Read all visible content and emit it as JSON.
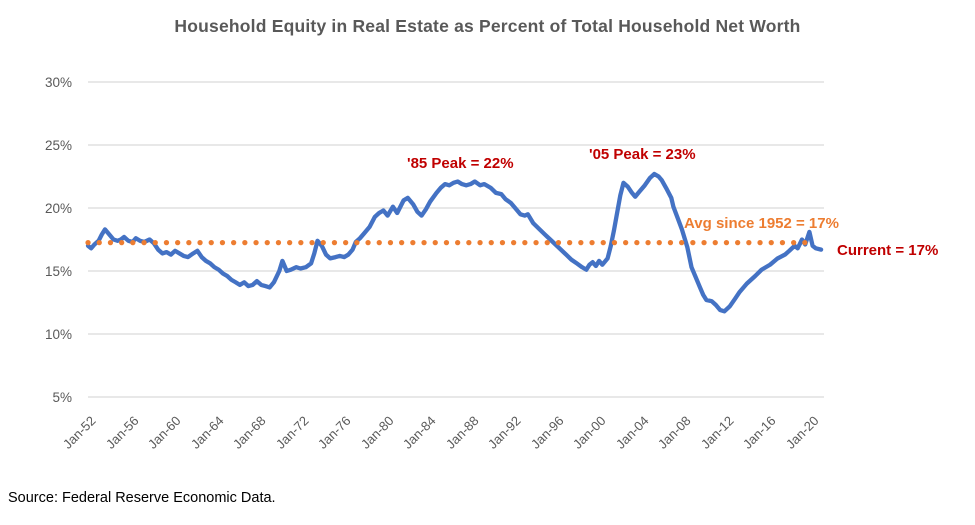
{
  "chart_data": {
    "type": "line",
    "title": "Household Equity in Real Estate as Percent of Total Household Net Worth",
    "xlabel": "",
    "ylabel": "",
    "ylim": [
      5,
      30
    ],
    "grid": "horizontal-only",
    "yticks": [
      30,
      25,
      20,
      15,
      10,
      5
    ],
    "ytick_labels": [
      "30%",
      "25%",
      "20%",
      "15%",
      "10%",
      "5%"
    ],
    "xtick_years": [
      1952,
      1956,
      1960,
      1964,
      1968,
      1972,
      1976,
      1980,
      1984,
      1988,
      1992,
      1996,
      2000,
      2004,
      2008,
      2012,
      2016,
      2020
    ],
    "xtick_labels": [
      "Jan-52",
      "Jan-56",
      "Jan-60",
      "Jan-64",
      "Jan-68",
      "Jan-72",
      "Jan-76",
      "Jan-80",
      "Jan-84",
      "Jan-88",
      "Jan-92",
      "Jan-96",
      "Jan-00",
      "Jan-04",
      "Jan-08",
      "Jan-12",
      "Jan-16",
      "Jan-20"
    ],
    "series": [
      {
        "name": "Household equity in real estate as percent of total household net worth",
        "color": "#4472C4",
        "points": [
          [
            1952.0,
            17.0
          ],
          [
            1952.3,
            16.8
          ],
          [
            1952.6,
            17.1
          ],
          [
            1953.0,
            17.4
          ],
          [
            1953.3,
            17.9
          ],
          [
            1953.6,
            18.3
          ],
          [
            1954.0,
            17.9
          ],
          [
            1954.4,
            17.5
          ],
          [
            1954.8,
            17.4
          ],
          [
            1955.1,
            17.5
          ],
          [
            1955.4,
            17.7
          ],
          [
            1955.8,
            17.4
          ],
          [
            1956.2,
            17.3
          ],
          [
            1956.5,
            17.6
          ],
          [
            1956.9,
            17.4
          ],
          [
            1957.3,
            17.3
          ],
          [
            1957.8,
            17.5
          ],
          [
            1958.2,
            17.2
          ],
          [
            1958.6,
            16.7
          ],
          [
            1959.0,
            16.4
          ],
          [
            1959.4,
            16.5
          ],
          [
            1959.8,
            16.3
          ],
          [
            1960.2,
            16.6
          ],
          [
            1960.6,
            16.4
          ],
          [
            1961.0,
            16.2
          ],
          [
            1961.4,
            16.1
          ],
          [
            1961.9,
            16.4
          ],
          [
            1962.3,
            16.6
          ],
          [
            1962.7,
            16.1
          ],
          [
            1963.1,
            15.8
          ],
          [
            1963.5,
            15.6
          ],
          [
            1963.9,
            15.3
          ],
          [
            1964.3,
            15.1
          ],
          [
            1964.7,
            14.8
          ],
          [
            1965.1,
            14.6
          ],
          [
            1965.5,
            14.3
          ],
          [
            1965.9,
            14.1
          ],
          [
            1966.3,
            13.9
          ],
          [
            1966.7,
            14.1
          ],
          [
            1967.1,
            13.8
          ],
          [
            1967.5,
            13.9
          ],
          [
            1967.9,
            14.2
          ],
          [
            1968.3,
            13.9
          ],
          [
            1968.7,
            13.8
          ],
          [
            1969.1,
            13.7
          ],
          [
            1969.5,
            14.1
          ],
          [
            1970.0,
            15.0
          ],
          [
            1970.3,
            15.8
          ],
          [
            1970.7,
            15.0
          ],
          [
            1971.1,
            15.1
          ],
          [
            1971.6,
            15.3
          ],
          [
            1972.0,
            15.2
          ],
          [
            1972.5,
            15.3
          ],
          [
            1973.0,
            15.6
          ],
          [
            1973.3,
            16.4
          ],
          [
            1973.6,
            17.4
          ],
          [
            1974.0,
            17.0
          ],
          [
            1974.4,
            16.3
          ],
          [
            1974.8,
            16.0
          ],
          [
            1975.3,
            16.1
          ],
          [
            1975.7,
            16.2
          ],
          [
            1976.1,
            16.1
          ],
          [
            1976.5,
            16.3
          ],
          [
            1976.9,
            16.7
          ],
          [
            1977.2,
            17.3
          ],
          [
            1977.6,
            17.6
          ],
          [
            1978.0,
            18.0
          ],
          [
            1978.5,
            18.5
          ],
          [
            1979.0,
            19.3
          ],
          [
            1979.4,
            19.6
          ],
          [
            1979.8,
            19.8
          ],
          [
            1980.2,
            19.4
          ],
          [
            1980.7,
            20.1
          ],
          [
            1981.1,
            19.6
          ],
          [
            1981.7,
            20.6
          ],
          [
            1982.1,
            20.8
          ],
          [
            1982.6,
            20.3
          ],
          [
            1983.0,
            19.7
          ],
          [
            1983.4,
            19.4
          ],
          [
            1983.8,
            19.9
          ],
          [
            1984.2,
            20.5
          ],
          [
            1984.8,
            21.2
          ],
          [
            1985.2,
            21.6
          ],
          [
            1985.6,
            21.9
          ],
          [
            1986.0,
            21.8
          ],
          [
            1986.4,
            22.0
          ],
          [
            1986.8,
            22.1
          ],
          [
            1987.2,
            21.9
          ],
          [
            1987.6,
            21.8
          ],
          [
            1988.0,
            21.9
          ],
          [
            1988.4,
            22.1
          ],
          [
            1988.9,
            21.8
          ],
          [
            1989.3,
            21.9
          ],
          [
            1989.9,
            21.6
          ],
          [
            1990.4,
            21.2
          ],
          [
            1990.9,
            21.1
          ],
          [
            1991.3,
            20.7
          ],
          [
            1991.8,
            20.4
          ],
          [
            1992.3,
            19.9
          ],
          [
            1992.7,
            19.5
          ],
          [
            1993.1,
            19.4
          ],
          [
            1993.4,
            19.5
          ],
          [
            1993.9,
            18.8
          ],
          [
            1994.5,
            18.3
          ],
          [
            1995.0,
            17.9
          ],
          [
            1995.5,
            17.5
          ],
          [
            1996.0,
            17.1
          ],
          [
            1996.5,
            16.7
          ],
          [
            1997.0,
            16.3
          ],
          [
            1997.5,
            15.9
          ],
          [
            1998.0,
            15.6
          ],
          [
            1998.5,
            15.3
          ],
          [
            1998.9,
            15.1
          ],
          [
            1999.2,
            15.5
          ],
          [
            1999.5,
            15.7
          ],
          [
            1999.8,
            15.4
          ],
          [
            2000.1,
            15.8
          ],
          [
            2000.4,
            15.5
          ],
          [
            2000.9,
            16.0
          ],
          [
            2001.2,
            17.0
          ],
          [
            2001.5,
            18.2
          ],
          [
            2001.8,
            19.6
          ],
          [
            2002.1,
            21.0
          ],
          [
            2002.4,
            22.0
          ],
          [
            2002.8,
            21.7
          ],
          [
            2003.2,
            21.2
          ],
          [
            2003.5,
            20.9
          ],
          [
            2003.9,
            21.3
          ],
          [
            2004.4,
            21.8
          ],
          [
            2004.9,
            22.4
          ],
          [
            2005.3,
            22.7
          ],
          [
            2005.7,
            22.5
          ],
          [
            2006.0,
            22.2
          ],
          [
            2006.4,
            21.6
          ],
          [
            2006.9,
            20.8
          ],
          [
            2007.1,
            20.1
          ],
          [
            2007.5,
            19.2
          ],
          [
            2007.9,
            18.3
          ],
          [
            2008.4,
            16.9
          ],
          [
            2008.8,
            15.3
          ],
          [
            2009.3,
            14.3
          ],
          [
            2009.6,
            13.7
          ],
          [
            2009.9,
            13.1
          ],
          [
            2010.2,
            12.7
          ],
          [
            2010.7,
            12.6
          ],
          [
            2011.1,
            12.3
          ],
          [
            2011.5,
            11.9
          ],
          [
            2011.9,
            11.8
          ],
          [
            2012.4,
            12.2
          ],
          [
            2012.9,
            12.8
          ],
          [
            2013.3,
            13.3
          ],
          [
            2014.0,
            14.0
          ],
          [
            2014.8,
            14.6
          ],
          [
            2015.4,
            15.1
          ],
          [
            2016.2,
            15.5
          ],
          [
            2016.9,
            16.0
          ],
          [
            2017.6,
            16.3
          ],
          [
            2018.0,
            16.6
          ],
          [
            2018.5,
            17.0
          ],
          [
            2018.8,
            16.8
          ],
          [
            2019.2,
            17.5
          ],
          [
            2019.5,
            17.1
          ],
          [
            2019.9,
            18.1
          ],
          [
            2020.2,
            17.0
          ],
          [
            2020.5,
            16.8
          ],
          [
            2021.0,
            16.7
          ]
        ]
      }
    ],
    "avg_line": {
      "value": 17.25,
      "style": "dotted",
      "color": "#ED7D31",
      "start_year": 1952.0,
      "end_year": 2019.8
    },
    "annotations": [
      {
        "id": "peak85",
        "text": "'85 Peak = 22%",
        "color": "#C00000"
      },
      {
        "id": "peak05",
        "text": "'05 Peak = 23%",
        "color": "#C00000"
      },
      {
        "id": "avg",
        "text": "Avg since 1952 = 17%",
        "color": "#ED7D31"
      },
      {
        "id": "current",
        "text": "Current = 17%",
        "color": "#C00000"
      }
    ],
    "legend": "none"
  },
  "colors": {
    "series_blue": "#4472C4",
    "avg_orange": "#ED7D31",
    "annotation_red": "#C00000",
    "axis_text_gray": "#595959",
    "title_gray": "#595959",
    "gridline_gray": "#D9D9D9",
    "background": "#FFFFFF"
  },
  "source": "Source: Federal Reserve Economic Data."
}
